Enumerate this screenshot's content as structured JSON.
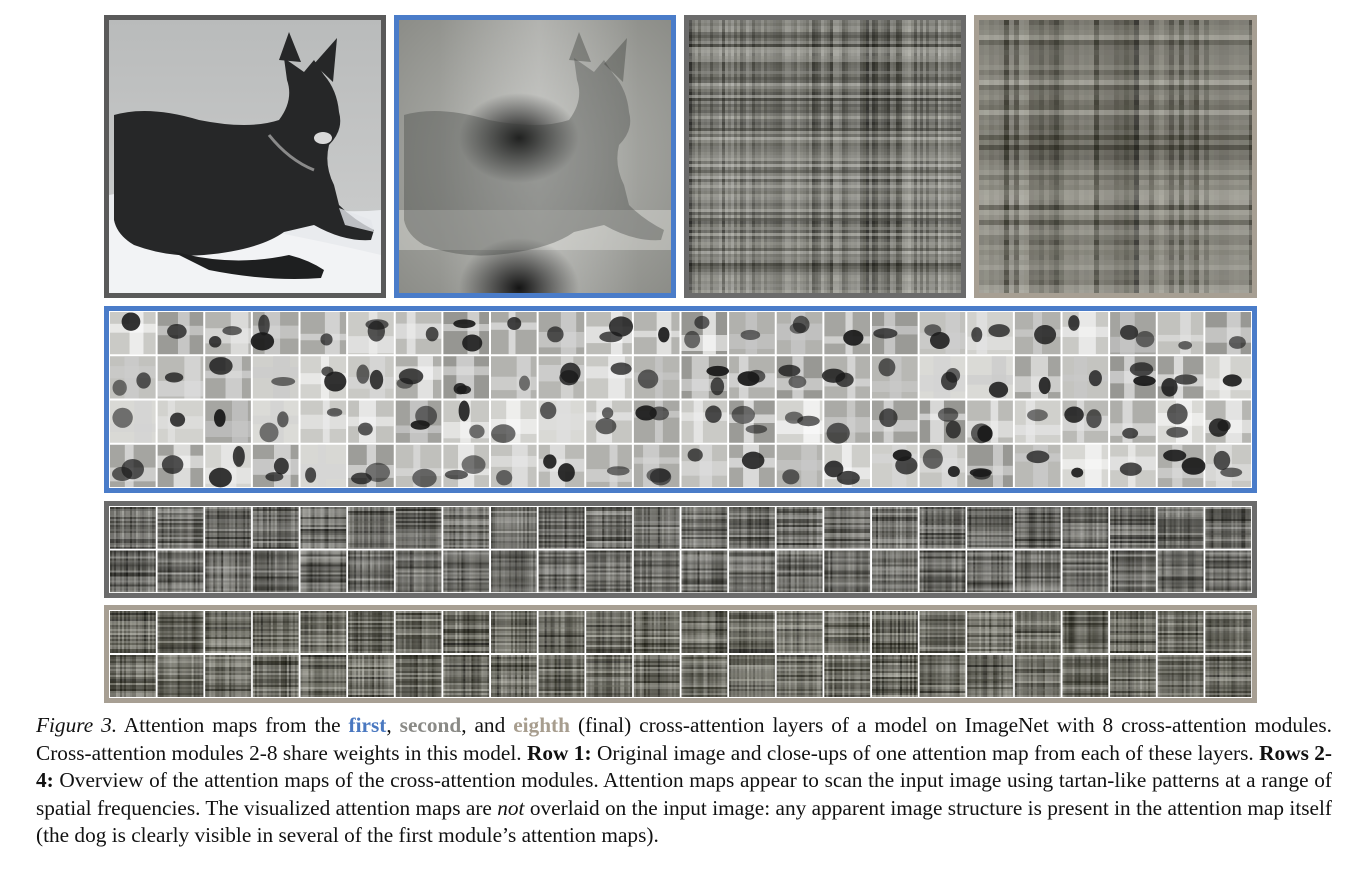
{
  "colors": {
    "first_layer": "#4a7cc9",
    "second_layer": "#6b6b6b",
    "eighth_layer": "#a79f93"
  },
  "figure": {
    "panels": [
      {
        "name": "original-image",
        "content": "photo of a dark dog lying on snow"
      },
      {
        "name": "first-layer-attention-closeup",
        "content": "attention map resembling dog silhouette"
      },
      {
        "name": "second-layer-attention-closeup",
        "content": "fine tartan pattern"
      },
      {
        "name": "eighth-layer-attention-closeup",
        "content": "coarse tartan pattern"
      }
    ],
    "grid_columns": 24,
    "rows": [
      {
        "name": "first-layer-attention-grid",
        "grid_rows": 4
      },
      {
        "name": "second-layer-attention-grid",
        "grid_rows": 2
      },
      {
        "name": "eighth-layer-attention-grid",
        "grid_rows": 2
      }
    ]
  },
  "caption": {
    "label": "Figure 3.",
    "t1": " Attention maps from the ",
    "w_first": "first",
    "t2": ", ",
    "w_second": "second",
    "t3": ", and ",
    "w_eighth": "eighth",
    "t4": " (final) cross-attention layers of a model on ImageNet with 8 cross-attention modules. Cross-attention modules 2-8 share weights in this model. ",
    "row1": "Row 1:",
    "t5": " Original image and close-ups of one attention map from each of these layers. ",
    "rows24": "Rows 2-4:",
    "t6": " Overview of the attention maps of the cross-attention modules. Attention maps appear to scan the input image using tartan-like patterns at a range of spatial frequencies. The visualized attention maps are ",
    "not": "not",
    "t7": " overlaid on the input image: any apparent image structure is present in the attention map itself (the dog is clearly visible in several of the first module’s attention maps)."
  }
}
